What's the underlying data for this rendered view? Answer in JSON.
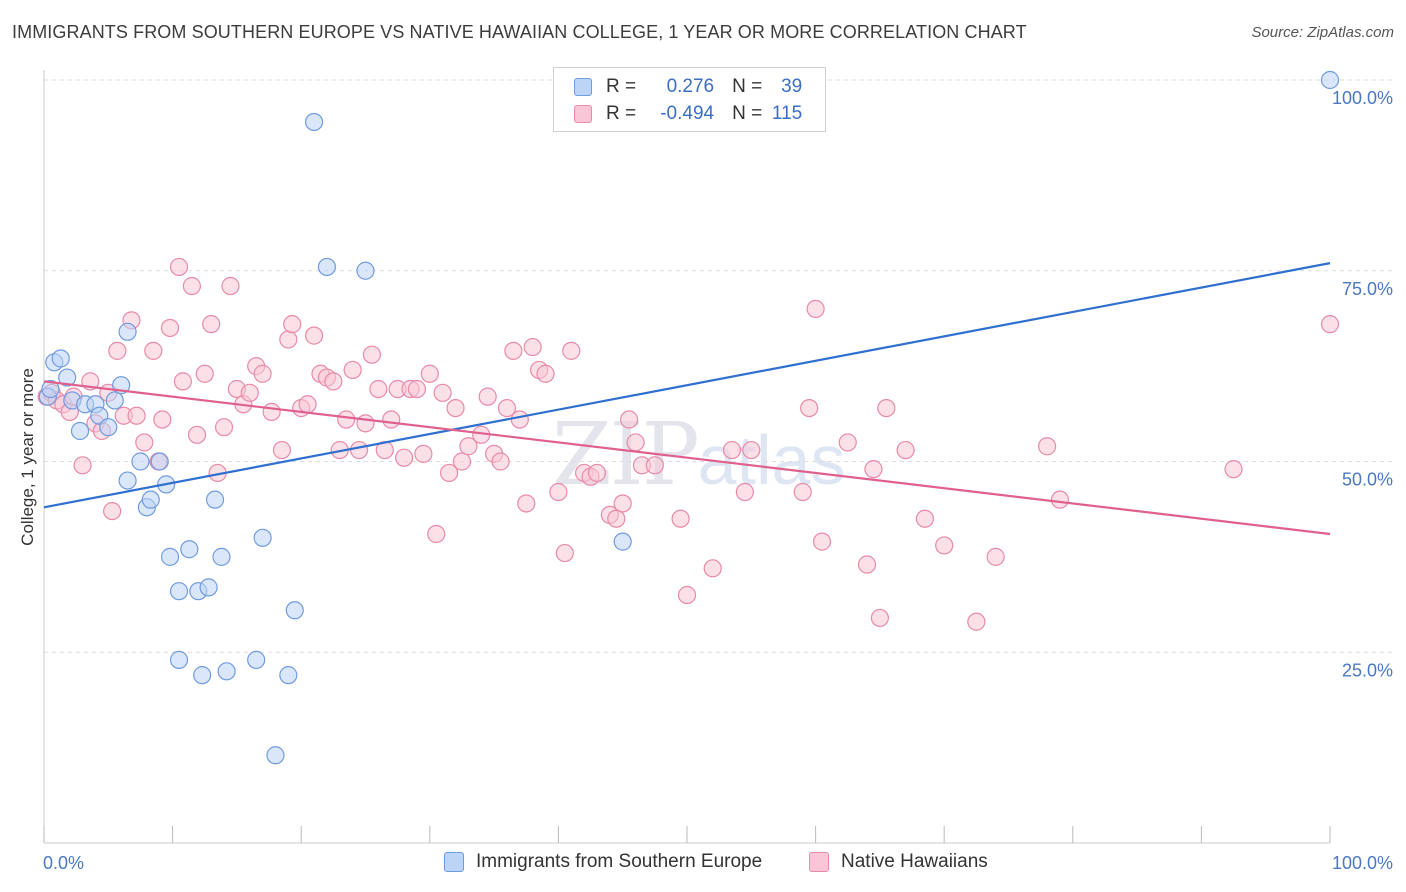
{
  "title": "IMMIGRANTS FROM SOUTHERN EUROPE VS NATIVE HAWAIIAN COLLEGE, 1 YEAR OR MORE CORRELATION CHART",
  "source": "Source: ZipAtlas.com",
  "watermark": {
    "zip": "ZIP",
    "atlas": "atlas"
  },
  "legend": {
    "rows": [
      {
        "r_label": "R =",
        "r_value": "0.276",
        "n_label": "N =",
        "n_value": "39",
        "fill": "#bcd4f5",
        "stroke": "#6f9be0"
      },
      {
        "r_label": "R =",
        "r_value": "-0.494",
        "n_label": "N =",
        "n_value": "115",
        "fill": "#f8c6d6",
        "stroke": "#e88aa8"
      }
    ]
  },
  "bottom_legend": [
    {
      "label": "Immigrants from Southern Europe",
      "fill": "#bcd4f5",
      "stroke": "#6f9be0"
    },
    {
      "label": "Native Hawaiians",
      "fill": "#f8c6d6",
      "stroke": "#e88aa8"
    }
  ],
  "chart_data": {
    "type": "scatter",
    "title": "IMMIGRANTS FROM SOUTHERN EUROPE VS NATIVE HAWAIIAN COLLEGE, 1 YEAR OR MORE CORRELATION CHART",
    "xlabel": "",
    "ylabel": "College, 1 year or more",
    "xlim": [
      0,
      100
    ],
    "ylim": [
      0,
      102
    ],
    "x_tick_labels": [
      "0.0%",
      "100.0%"
    ],
    "y_ticks": [
      {
        "value": 25,
        "label": "25.0%"
      },
      {
        "value": 50,
        "label": "50.0%"
      },
      {
        "value": 75,
        "label": "75.0%"
      },
      {
        "value": 100,
        "label": "100.0%"
      }
    ],
    "grid": true,
    "series": [
      {
        "name": "Immigrants from Southern Europe",
        "color": "#6f9be0",
        "fill": "#bcd4f5",
        "line_color": "#2f6fd0",
        "trend": [
          [
            0,
            44.0
          ],
          [
            100,
            76.0
          ]
        ],
        "points": [
          [
            0.3,
            58.5
          ],
          [
            0.5,
            59.5
          ],
          [
            0.8,
            63.0
          ],
          [
            1.3,
            63.5
          ],
          [
            1.8,
            61.0
          ],
          [
            2.2,
            58.0
          ],
          [
            2.8,
            54.0
          ],
          [
            3.2,
            57.5
          ],
          [
            4.0,
            57.5
          ],
          [
            4.3,
            56.0
          ],
          [
            5.0,
            54.5
          ],
          [
            5.5,
            58.0
          ],
          [
            6.0,
            60.0
          ],
          [
            6.5,
            67.0
          ],
          [
            6.5,
            47.5
          ],
          [
            7.5,
            50.0
          ],
          [
            8.0,
            44.0
          ],
          [
            8.3,
            45.0
          ],
          [
            9.0,
            50.0
          ],
          [
            9.5,
            47.0
          ],
          [
            9.8,
            37.5
          ],
          [
            10.5,
            24.0
          ],
          [
            10.5,
            33.0
          ],
          [
            11.3,
            38.5
          ],
          [
            12.0,
            33.0
          ],
          [
            12.3,
            22.0
          ],
          [
            12.8,
            33.5
          ],
          [
            13.3,
            45.0
          ],
          [
            13.8,
            37.5
          ],
          [
            14.2,
            22.5
          ],
          [
            16.5,
            24.0
          ],
          [
            17.0,
            40.0
          ],
          [
            18.0,
            11.5
          ],
          [
            19.0,
            22.0
          ],
          [
            19.5,
            30.5
          ],
          [
            21.0,
            94.5
          ],
          [
            22.0,
            75.5
          ],
          [
            25.0,
            75.0
          ],
          [
            45.0,
            39.5
          ],
          [
            100.0,
            100.0
          ]
        ]
      },
      {
        "name": "Native Hawaiians",
        "color": "#e88aa8",
        "fill": "#f8c6d6",
        "line_color": "#e0608d",
        "trend": [
          [
            0,
            60.5
          ],
          [
            100,
            40.5
          ]
        ],
        "points": [
          [
            0.2,
            58.5
          ],
          [
            0.6,
            59.0
          ],
          [
            1.0,
            58.0
          ],
          [
            1.5,
            57.5
          ],
          [
            2.0,
            56.5
          ],
          [
            2.3,
            58.5
          ],
          [
            3.0,
            49.5
          ],
          [
            3.6,
            60.5
          ],
          [
            4.0,
            55.0
          ],
          [
            4.5,
            54.0
          ],
          [
            5.0,
            59.0
          ],
          [
            5.3,
            43.5
          ],
          [
            5.7,
            64.5
          ],
          [
            6.2,
            56.0
          ],
          [
            6.8,
            68.5
          ],
          [
            7.2,
            56.0
          ],
          [
            7.8,
            52.5
          ],
          [
            8.5,
            64.5
          ],
          [
            8.9,
            50.0
          ],
          [
            9.2,
            55.5
          ],
          [
            9.8,
            67.5
          ],
          [
            10.5,
            75.5
          ],
          [
            10.8,
            60.5
          ],
          [
            11.5,
            73.0
          ],
          [
            11.9,
            53.5
          ],
          [
            12.5,
            61.5
          ],
          [
            13.0,
            68.0
          ],
          [
            13.5,
            48.5
          ],
          [
            14.0,
            54.5
          ],
          [
            14.5,
            73.0
          ],
          [
            15.0,
            59.5
          ],
          [
            15.5,
            57.5
          ],
          [
            16.0,
            59.0
          ],
          [
            16.5,
            62.5
          ],
          [
            17.0,
            61.5
          ],
          [
            17.7,
            56.5
          ],
          [
            18.5,
            51.5
          ],
          [
            19.0,
            66.0
          ],
          [
            19.3,
            68.0
          ],
          [
            20.0,
            57.0
          ],
          [
            20.5,
            57.5
          ],
          [
            21.0,
            66.5
          ],
          [
            21.5,
            61.5
          ],
          [
            22.0,
            61.0
          ],
          [
            22.5,
            60.5
          ],
          [
            23.0,
            51.5
          ],
          [
            23.5,
            55.5
          ],
          [
            24.0,
            62.0
          ],
          [
            24.5,
            51.5
          ],
          [
            25.0,
            55.0
          ],
          [
            25.5,
            64.0
          ],
          [
            26.0,
            59.5
          ],
          [
            26.5,
            51.5
          ],
          [
            27.0,
            55.5
          ],
          [
            27.5,
            59.5
          ],
          [
            28.0,
            50.5
          ],
          [
            28.5,
            59.5
          ],
          [
            29.0,
            59.5
          ],
          [
            29.5,
            51.0
          ],
          [
            30.0,
            61.5
          ],
          [
            30.5,
            40.5
          ],
          [
            31.0,
            59.0
          ],
          [
            31.5,
            48.5
          ],
          [
            32.0,
            57.0
          ],
          [
            32.5,
            50.0
          ],
          [
            33.0,
            52.0
          ],
          [
            34.0,
            53.5
          ],
          [
            34.5,
            58.5
          ],
          [
            35.0,
            51.0
          ],
          [
            35.5,
            50.0
          ],
          [
            36.0,
            57.0
          ],
          [
            36.5,
            64.5
          ],
          [
            37.0,
            55.5
          ],
          [
            37.5,
            44.5
          ],
          [
            38.0,
            65.0
          ],
          [
            38.5,
            62.0
          ],
          [
            39.0,
            61.5
          ],
          [
            40.0,
            46.0
          ],
          [
            40.5,
            38.0
          ],
          [
            41.0,
            64.5
          ],
          [
            42.0,
            48.5
          ],
          [
            42.5,
            48.0
          ],
          [
            43.0,
            48.5
          ],
          [
            44.0,
            43.0
          ],
          [
            44.5,
            42.5
          ],
          [
            45.0,
            44.5
          ],
          [
            45.5,
            55.5
          ],
          [
            46.0,
            52.5
          ],
          [
            46.5,
            49.5
          ],
          [
            47.5,
            49.5
          ],
          [
            49.5,
            42.5
          ],
          [
            50.0,
            32.5
          ],
          [
            52.0,
            36.0
          ],
          [
            53.5,
            51.5
          ],
          [
            54.5,
            46.0
          ],
          [
            55.0,
            51.5
          ],
          [
            59.0,
            46.0
          ],
          [
            59.5,
            57.0
          ],
          [
            60.0,
            70.0
          ],
          [
            60.5,
            39.5
          ],
          [
            62.5,
            52.5
          ],
          [
            64.0,
            36.5
          ],
          [
            64.5,
            49.0
          ],
          [
            65.0,
            29.5
          ],
          [
            65.5,
            57.0
          ],
          [
            67.0,
            51.5
          ],
          [
            68.5,
            42.5
          ],
          [
            70.0,
            39.0
          ],
          [
            72.5,
            29.0
          ],
          [
            74.0,
            37.5
          ],
          [
            78.0,
            52.0
          ],
          [
            79.0,
            45.0
          ],
          [
            92.5,
            49.0
          ],
          [
            100.0,
            68.0
          ]
        ]
      }
    ]
  }
}
